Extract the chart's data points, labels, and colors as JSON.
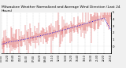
{
  "title": "Milwaukee Weather Normalized and Average Wind Direction (Last 24 Hours)",
  "background_color": "#f0f0f0",
  "plot_bg_color": "#ffffff",
  "grid_color": "#aaaaaa",
  "bar_color": "#cc0000",
  "line_color": "#0000dd",
  "n_points": 144,
  "y_min": -1,
  "y_max": 5,
  "y_ticks": [
    0,
    1,
    2,
    3,
    4,
    5
  ],
  "title_fontsize": 3.2,
  "tick_fontsize": 2.8
}
